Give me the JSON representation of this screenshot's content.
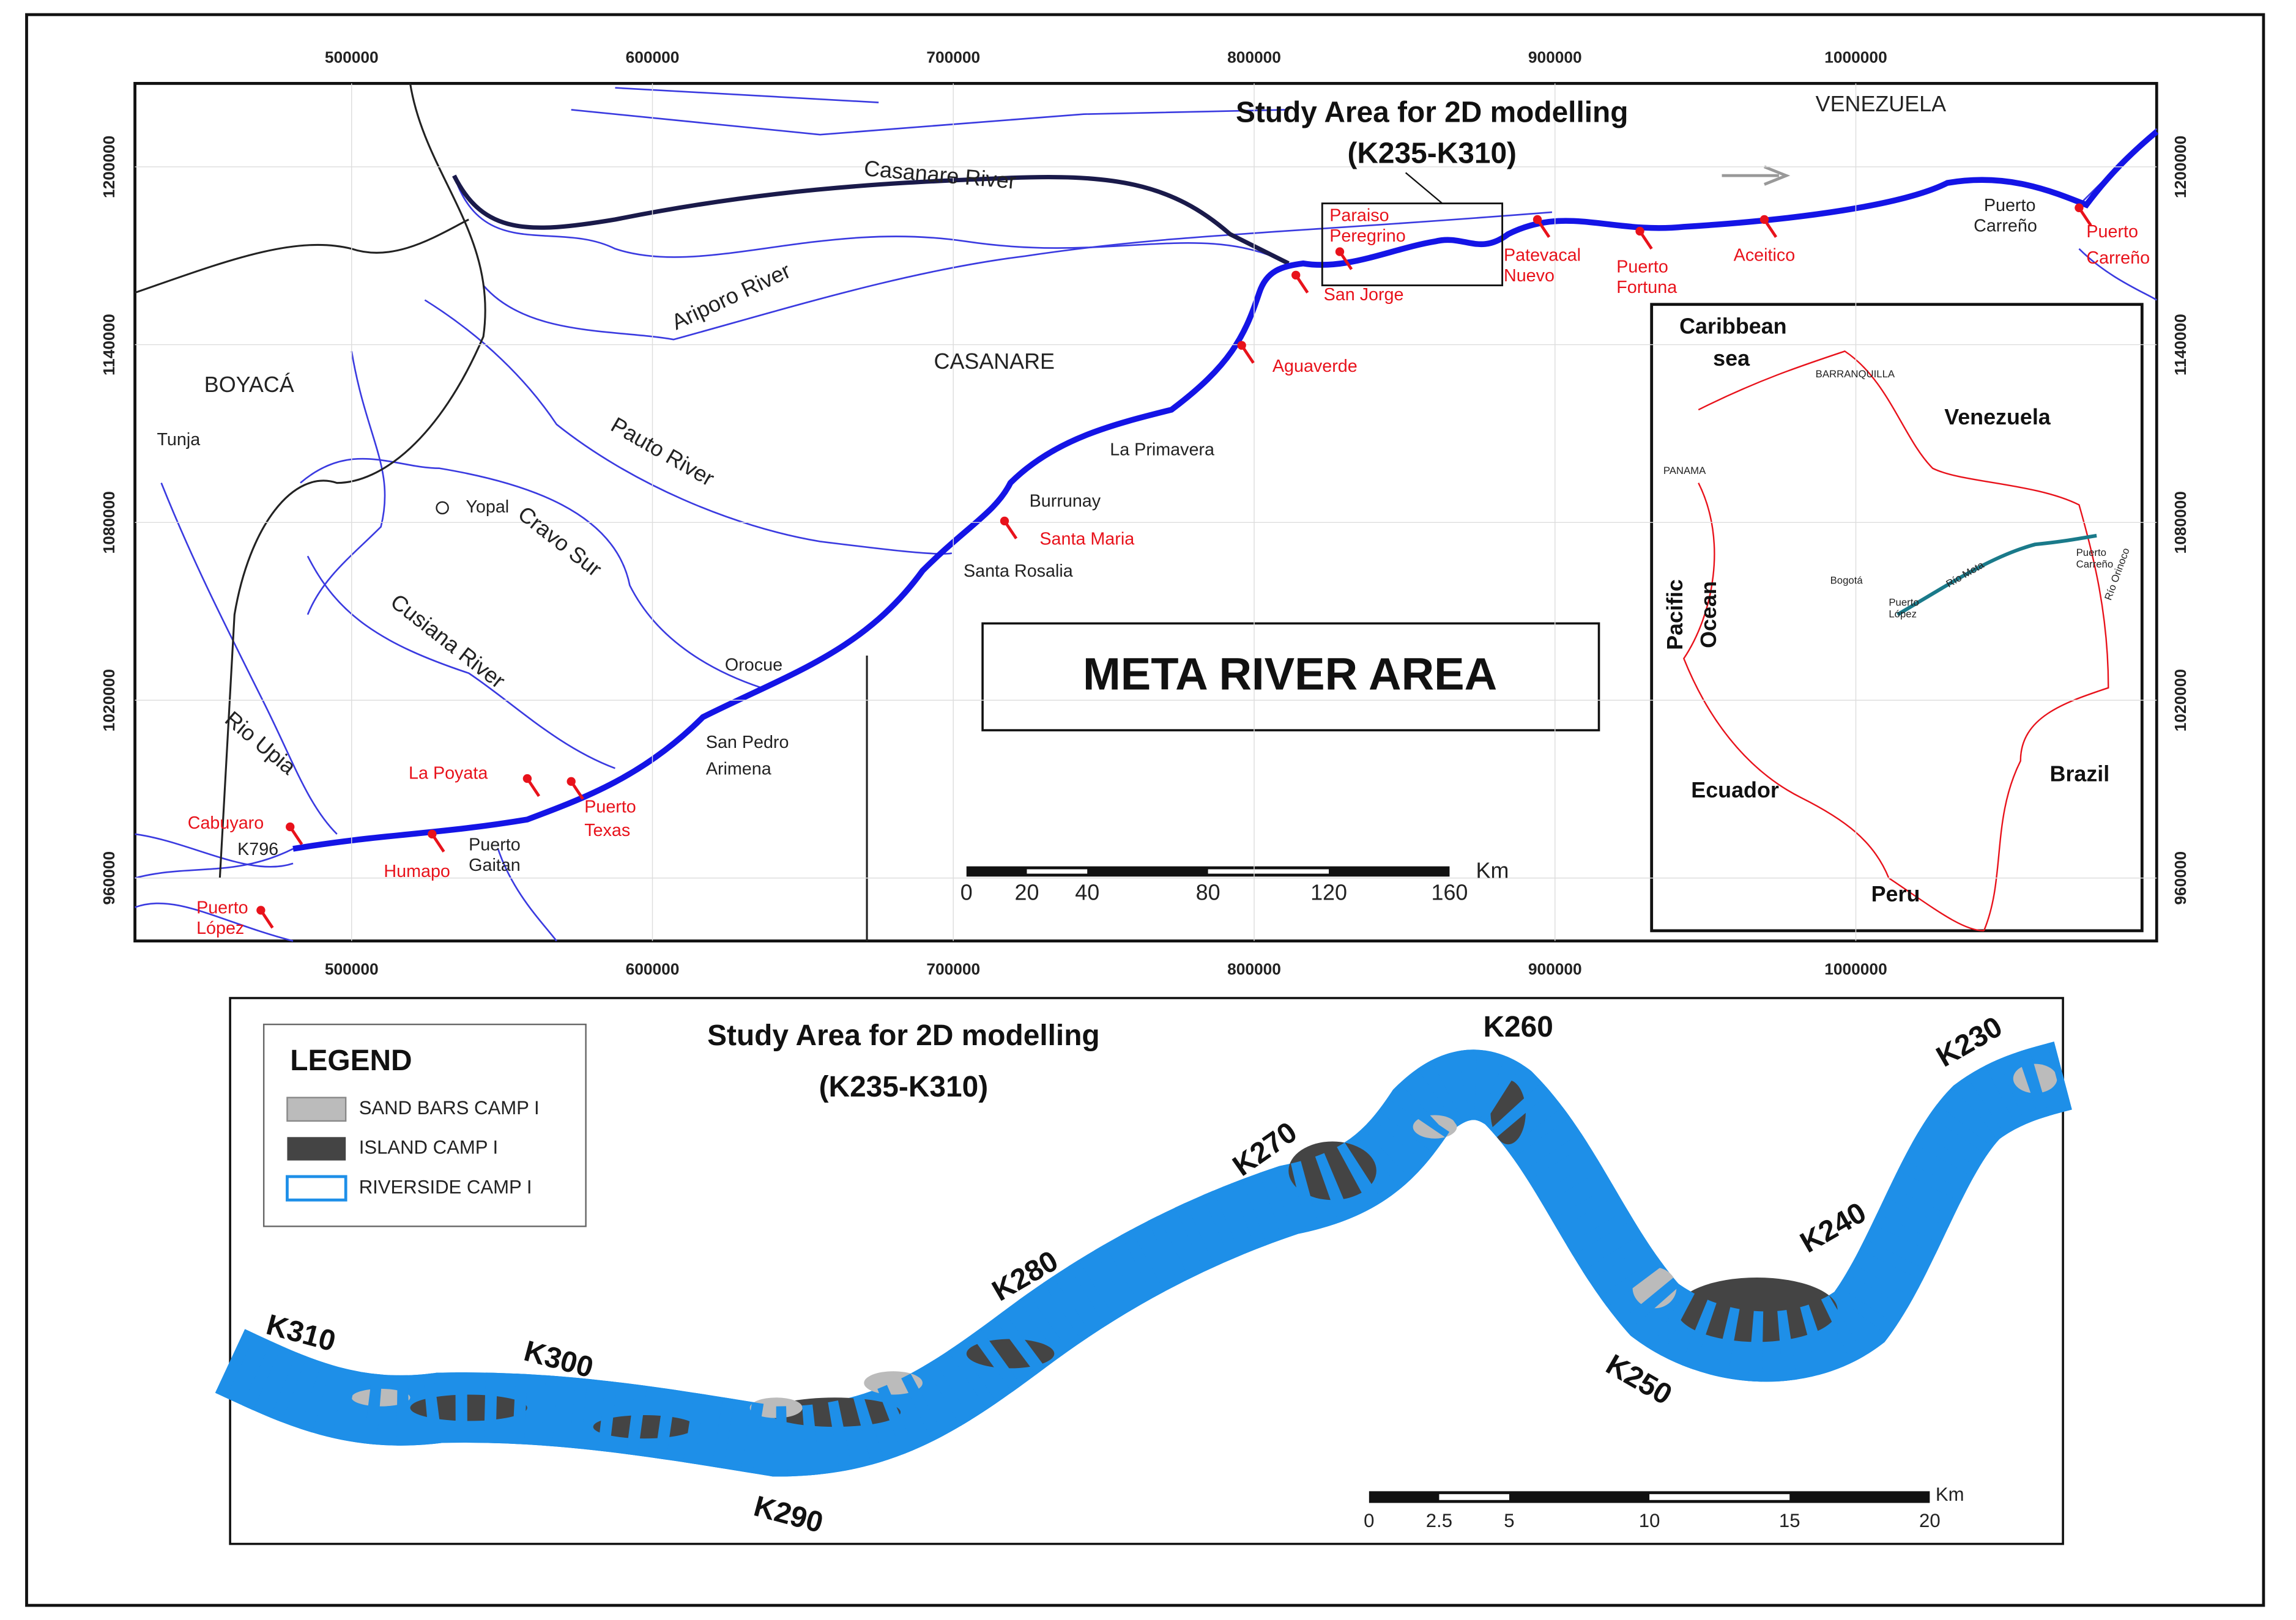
{
  "main_map": {
    "title": "META RIVER AREA",
    "study_area": [
      "Study Area for 2D modelling",
      "(K235-K310)"
    ],
    "xticks": [
      500000,
      600000,
      700000,
      800000,
      900000,
      1000000
    ],
    "yticks": [
      960000,
      1020000,
      1080000,
      1140000,
      1200000
    ],
    "regions": [
      "VENEZUELA",
      "BOYACÁ",
      "CASANARE"
    ],
    "rivers": [
      "Casanare River",
      "Ariporo River",
      "Pauto River",
      "Cravo Sur",
      "Cusiana River",
      "Rio Upia"
    ],
    "red_places": [
      [
        "Paraiso",
        "Peregrino"
      ],
      [
        "San Jorge"
      ],
      [
        "Patevacal",
        "Nuevo"
      ],
      [
        "Puerto",
        "Fortuna"
      ],
      [
        "Aceitico"
      ],
      [
        "Puerto",
        "Carreño"
      ],
      [
        "Aguaverde"
      ],
      [
        "Santa Maria"
      ],
      [
        "La Poyata"
      ],
      [
        "Puerto",
        "Texas"
      ],
      [
        "Cabuyaro"
      ],
      [
        "Humapo"
      ],
      [
        "Puerto",
        "López"
      ]
    ],
    "places": [
      [
        "Puerto",
        "Carreño"
      ],
      [
        "La Primavera"
      ],
      [
        "Burrunay"
      ],
      [
        "Santa Rosalia"
      ],
      [
        "Orocue"
      ],
      [
        "San Pedro",
        "Arimena"
      ],
      [
        "Puerto",
        "Gaitan"
      ],
      [
        "K796"
      ],
      [
        "Yopal"
      ],
      [
        "Tunja"
      ]
    ],
    "scale": {
      "ticks": [
        0,
        20,
        40,
        80,
        120,
        160
      ],
      "unit": "Km"
    }
  },
  "inset": {
    "labels": [
      [
        "Caribbean",
        "sea"
      ],
      [
        "BARRANQUILLA"
      ],
      [
        "Venezuela"
      ],
      [
        "PANAMA"
      ],
      [
        "Pacific",
        "Ocean"
      ],
      [
        "Bogotá"
      ],
      [
        "Puerto",
        "López"
      ],
      [
        "Río Meta"
      ],
      [
        "Puerto",
        "Carreño"
      ],
      [
        "Río Orinoco"
      ],
      [
        "Ecuador"
      ],
      [
        "Brazil"
      ],
      [
        "Peru"
      ]
    ]
  },
  "detail": {
    "title": [
      "Study Area for 2D modelling",
      "(K235-K310)"
    ],
    "legend": {
      "title": "LEGEND",
      "items": [
        "SAND BARS CAMP I",
        "ISLAND CAMP I",
        "RIVERSIDE CAMP I"
      ]
    },
    "markers": [
      "K310",
      "K300",
      "K290",
      "K280",
      "K270",
      "K260",
      "K250",
      "K240",
      "K230"
    ],
    "scale": {
      "ticks": [
        0,
        2.5,
        5,
        10,
        15,
        20
      ],
      "unit": "Km"
    }
  }
}
